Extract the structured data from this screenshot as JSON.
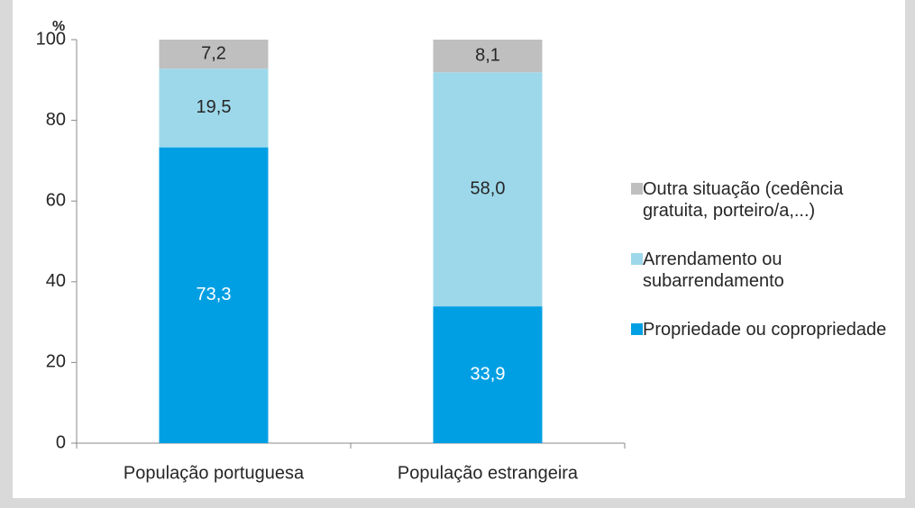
{
  "chart_data": {
    "type": "stacked_bar",
    "y_label": "%",
    "categories": [
      "População portuguesa",
      "População estrangeira"
    ],
    "series": [
      {
        "name": "Propriedade ou copropriedade",
        "color": "#009fe3",
        "label_color": "#ffffff",
        "values": [
          73.3,
          33.9
        ],
        "value_labels": [
          "73,3",
          "33,9"
        ]
      },
      {
        "name": "Arrendamento ou subarrendamento",
        "color": "#9dd8ea",
        "label_color": "#262626",
        "values": [
          19.5,
          58.0
        ],
        "value_labels": [
          "19,5",
          "58,0"
        ]
      },
      {
        "name": "Outra situação (cedência gratuita, porteiro/a,...)",
        "color": "#bfbfbf",
        "label_color": "#262626",
        "values": [
          7.2,
          8.1
        ],
        "value_labels": [
          "7,2",
          "8,1"
        ]
      }
    ],
    "ylim": [
      0,
      100
    ],
    "yticks": [
      0,
      20,
      40,
      60,
      80,
      100
    ],
    "legend": "right"
  }
}
